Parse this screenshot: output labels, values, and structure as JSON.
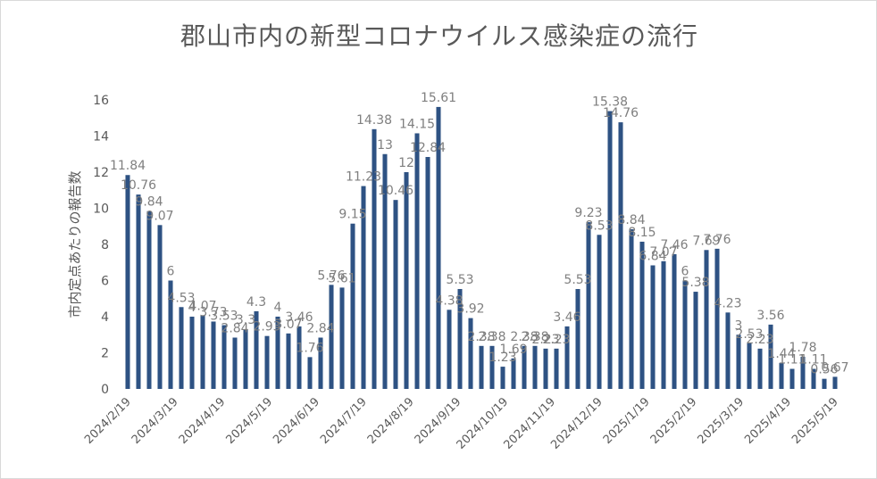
{
  "chart_data": {
    "type": "bar",
    "title": "郡山市内の新型コロナウイルス感染症の流行",
    "ylabel": "市内定点あたりの報告数",
    "xlabel": "",
    "ylim": [
      0,
      16
    ],
    "yticks": [
      0,
      2,
      4,
      6,
      8,
      10,
      12,
      14,
      16
    ],
    "grid": false,
    "legend": "none",
    "bar_color": "#2e5283",
    "x_tick_labels": [
      "2024/2/19",
      "2024/3/19",
      "2024/4/19",
      "2024/5/19",
      "2024/6/19",
      "2024/7/19",
      "2024/8/19",
      "2024/9/19",
      "2024/10/19",
      "2024/11/19",
      "2024/12/19",
      "2025/1/19",
      "2025/2/19",
      "2025/3/19",
      "2025/4/19",
      "2025/5/19"
    ],
    "values": [
      11.84,
      10.76,
      9.84,
      9.07,
      6,
      4.53,
      4,
      4.07,
      3.73,
      3.53,
      2.84,
      3.3,
      4.3,
      2.93,
      4,
      3.07,
      3.46,
      1.76,
      2.84,
      5.76,
      5.61,
      9.15,
      11.23,
      14.38,
      13,
      10.46,
      12,
      14.15,
      12.84,
      15.61,
      4.38,
      5.53,
      3.92,
      2.38,
      2.38,
      1.23,
      1.69,
      2.38,
      2.38,
      2.23,
      2.23,
      3.46,
      5.53,
      9.23,
      8.53,
      15.38,
      14.76,
      8.84,
      8.15,
      6.84,
      7.07,
      7.46,
      6,
      5.38,
      7.69,
      7.76,
      4.23,
      3,
      2.53,
      2.23,
      3.56,
      1.44,
      1.11,
      1.78,
      1.11,
      0.56,
      0.67
    ]
  }
}
